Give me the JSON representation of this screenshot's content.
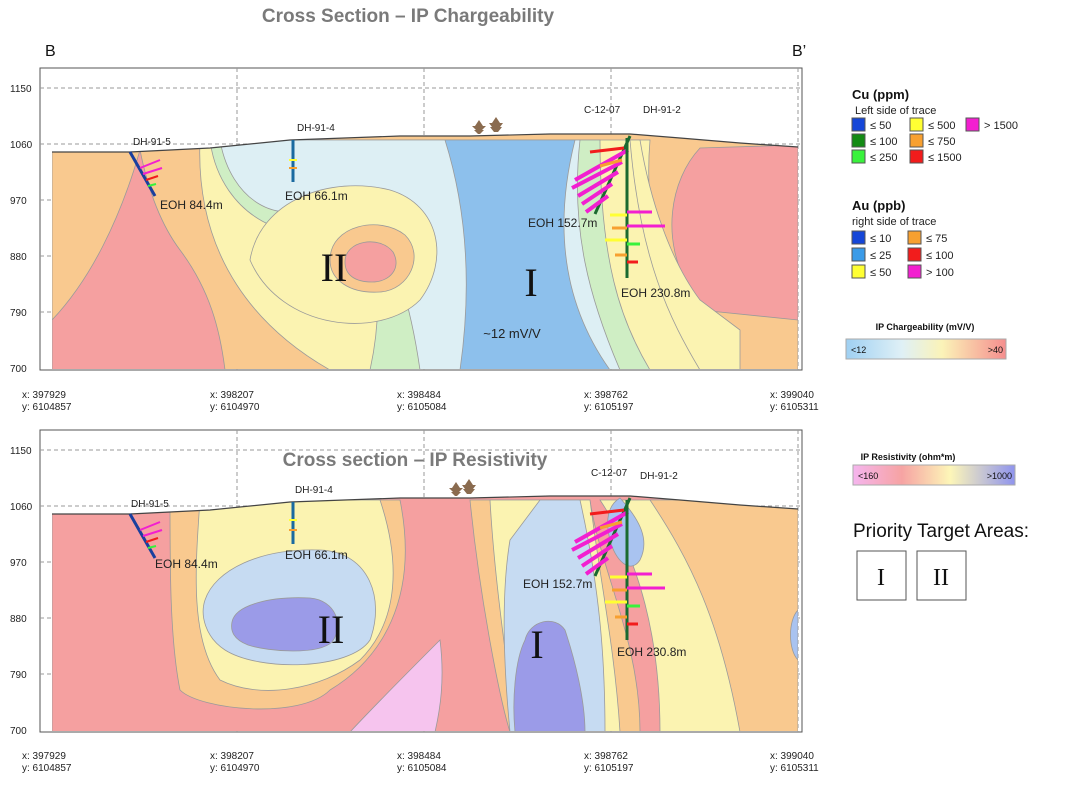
{
  "figure": {
    "title_top": "Cross Section – IP Chargeability",
    "title_bottom": "Cross section – IP Resistivity",
    "label_left": "B",
    "label_right": "B’",
    "elevation_ticks": [
      "1150",
      "1060",
      "970",
      "880",
      "790",
      "700"
    ],
    "coordinate_ticks": [
      {
        "x": "x: 397929",
        "y": "y: 6104857"
      },
      {
        "x": "x: 398207",
        "y": "y: 6104970"
      },
      {
        "x": "x: 398484",
        "y": "y: 6105084"
      },
      {
        "x": "x: 398762",
        "y": "y: 6105197"
      },
      {
        "x": "x: 399040",
        "y": "y: 6105311"
      }
    ]
  },
  "drillholes": {
    "dh_91_5": "DH-91-5",
    "dh_91_4": "DH-91-4",
    "c_12_07": "C-12-07",
    "dh_91_2": "DH-91-2",
    "eoh_91_5": "EOH 84.4m",
    "eoh_91_4": "EOH 66.1m",
    "eoh_c_12_07": "EOH 152.7m",
    "eoh_91_2": "EOH 230.8m"
  },
  "targets": {
    "target_1": "I",
    "target_2": "II"
  },
  "chargeability_annotation": "~12 mV/V",
  "legend_cu": {
    "title": "Cu (ppm)",
    "subtitle": "Left side of trace",
    "items": [
      {
        "label": "≤ 50",
        "color": "#1546d8"
      },
      {
        "label": "≤ 500",
        "color": "#ffff33"
      },
      {
        "label": "> 1500",
        "color": "#f21fd0"
      },
      {
        "label": "≤ 100",
        "color": "#138a14"
      },
      {
        "label": "≤ 750",
        "color": "#f7a030"
      },
      {
        "label": "≤ 250",
        "color": "#39f23c"
      },
      {
        "label": "≤ 1500",
        "color": "#f21c1c"
      }
    ]
  },
  "legend_au": {
    "title": "Au (ppb)",
    "subtitle": "right side of trace",
    "items": [
      {
        "label": "≤ 10",
        "color": "#1546d8"
      },
      {
        "label": "≤ 75",
        "color": "#f7a030"
      },
      {
        "label": "≤ 25",
        "color": "#3a9be8"
      },
      {
        "label": "≤ 100",
        "color": "#f21c1c"
      },
      {
        "label": "≤ 50",
        "color": "#ffff33"
      },
      {
        "label": "> 100",
        "color": "#f21fd0"
      }
    ]
  },
  "legend_chargeability": {
    "title": "IP Chargeability (mV/V)",
    "low": "<12",
    "high": ">40"
  },
  "legend_resistivity": {
    "title": "IP Resistivity (ohm*m)",
    "low": "<160",
    "high": ">1000"
  },
  "priority": {
    "title": "Priority Target Areas:",
    "box_1": "I",
    "box_2": "II"
  }
}
